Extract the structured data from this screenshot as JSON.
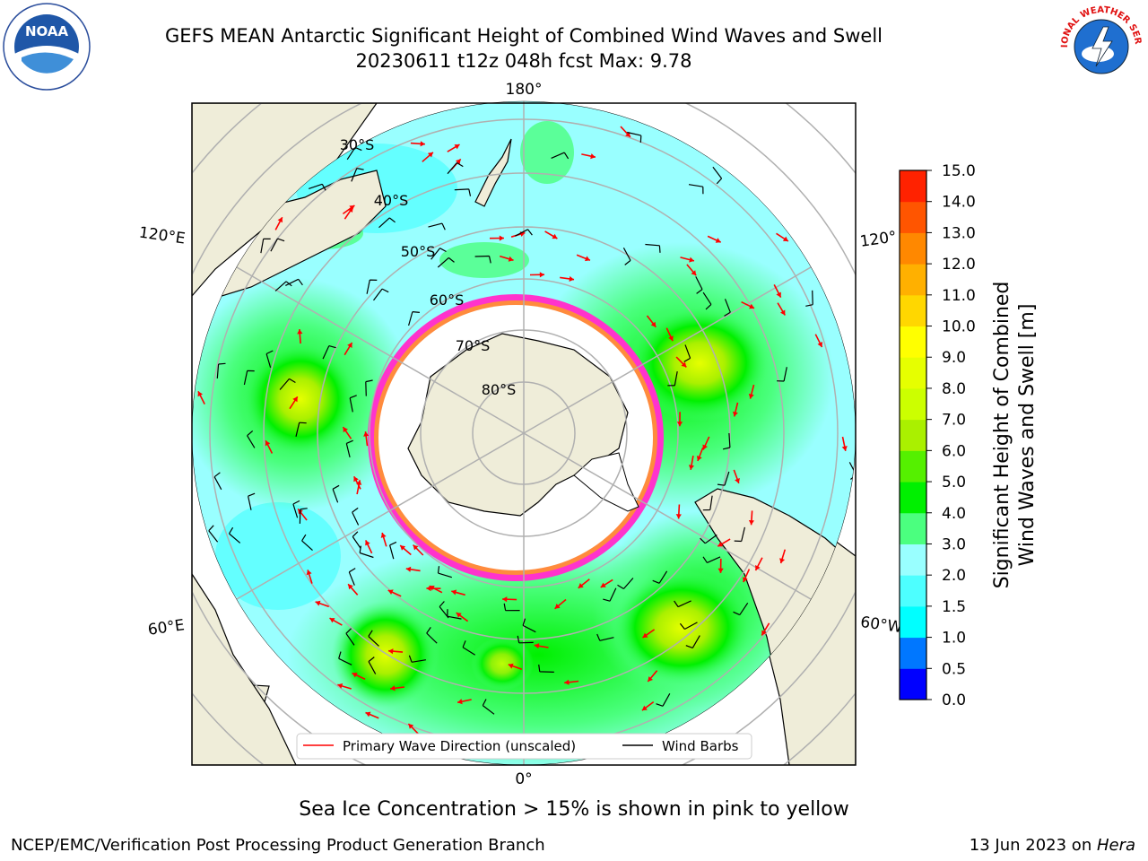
{
  "title": {
    "line1": "GEFS MEAN Antarctic Significant Height of Combined Wind Waves and Swell",
    "line2": "20230611 t12z 048h fcst   Max: 9.78"
  },
  "map": {
    "lon_labels": {
      "top": "180°",
      "bottom": "0°",
      "left_upper": "120°E",
      "left_lower": "60°E",
      "right_upper": "120°",
      "right_lower": "60°W"
    },
    "lat_labels": [
      "30°S",
      "40°S",
      "50°S",
      "60°S",
      "70°S",
      "80°S"
    ],
    "legend": {
      "wave_direction": "Primary Wave Direction (unscaled)",
      "wind_barbs": "Wind Barbs"
    },
    "colors": {
      "land": "#efedd9",
      "ocean_low": "#99ffff",
      "ocean_mid": "#4bff7f",
      "ocean_high": "#00f000",
      "swell_max": "#e6ff00",
      "ice_edge": "#ff33cc",
      "arrow": "#ff0000"
    }
  },
  "colorbar": {
    "label_line1": "Significant Height of Combined",
    "label_line2": "Wind Waves and Swell [m]",
    "ticks": [
      "0.0",
      "0.5",
      "1.0",
      "1.5",
      "2.0",
      "3.0",
      "4.0",
      "5.0",
      "6.0",
      "7.0",
      "8.0",
      "9.0",
      "10.0",
      "11.0",
      "12.0",
      "13.0",
      "14.0",
      "15.0"
    ],
    "colors": [
      "#0000ff",
      "#0077ff",
      "#00ffff",
      "#4dffff",
      "#99ffff",
      "#4bff7f",
      "#00f000",
      "#55f000",
      "#aaf000",
      "#ccff00",
      "#e6ff00",
      "#ffff00",
      "#ffd700",
      "#ffb000",
      "#ff8800",
      "#ff5500",
      "#ff2200"
    ]
  },
  "sea_ice_note": "Sea Ice Concentration > 15% is shown in pink to yellow",
  "footer": {
    "left": "NCEP/EMC/Verification Post Processing Product Generation Branch",
    "date": "13 Jun 2023 on ",
    "machine": "Hera"
  },
  "logos": {
    "left": "NOAA",
    "right": "NATIONAL WEATHER SERVICE"
  }
}
